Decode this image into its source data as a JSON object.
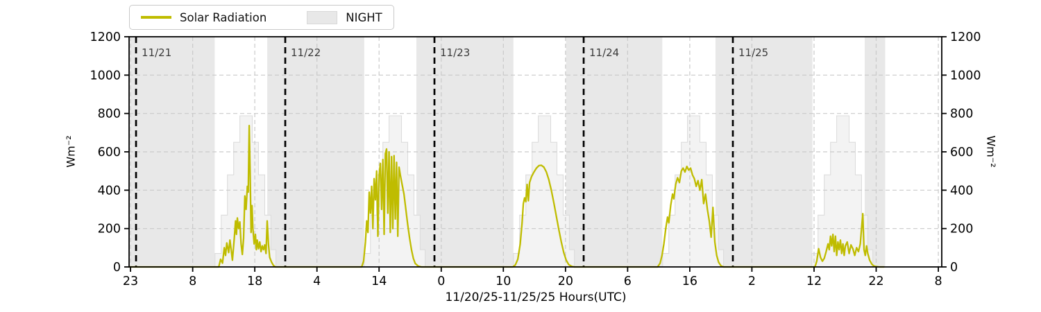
{
  "chart_data": {
    "type": "line",
    "xlabel": "11/20/25-11/25/25  Hours(UTC)",
    "ylabel": "Wm⁻²",
    "ylim": [
      0,
      1200
    ],
    "yticks": [
      0,
      200,
      400,
      600,
      800,
      1000,
      1200
    ],
    "x_range_hours": [
      -1.12,
      129.6
    ],
    "xticks": [
      {
        "hour": -0.89,
        "label": "23"
      },
      {
        "hour": 9.11,
        "label": "8"
      },
      {
        "hour": 19.1,
        "label": "18"
      },
      {
        "hour": 29.1,
        "label": "4"
      },
      {
        "hour": 39.09,
        "label": "14"
      },
      {
        "hour": 49.09,
        "label": "0"
      },
      {
        "hour": 59.08,
        "label": "10"
      },
      {
        "hour": 69.08,
        "label": "20"
      },
      {
        "hour": 79.07,
        "label": "6"
      },
      {
        "hour": 89.07,
        "label": "16"
      },
      {
        "hour": 99.06,
        "label": "2"
      },
      {
        "hour": 109.06,
        "label": "12"
      },
      {
        "hour": 119.05,
        "label": "22"
      },
      {
        "hour": 129.05,
        "label": "8"
      }
    ],
    "grid": true,
    "legend_position": "top-left",
    "legend_line_label": "Solar Radiation",
    "legend_night_label": "NIGHT",
    "day_markers": [
      {
        "hour": 0,
        "label": "11/21"
      },
      {
        "hour": 24,
        "label": "11/22"
      },
      {
        "hour": 48,
        "label": "11/23"
      },
      {
        "hour": 72,
        "label": "11/24"
      },
      {
        "hour": 96,
        "label": "11/25"
      }
    ],
    "night_bands_hours": [
      [
        -1.12,
        12.65
      ],
      [
        21.1,
        36.7
      ],
      [
        45.1,
        60.7
      ],
      [
        69.15,
        84.65
      ],
      [
        93.2,
        108.8
      ],
      [
        117.2,
        120.5
      ]
    ],
    "clear_sky_steps": {
      "day_offsets_hours": [
        0,
        24,
        48,
        72,
        96
      ],
      "step_boundaries_rel_midnight": [
        12.7,
        13.7,
        14.7,
        15.7,
        16.7,
        18.7,
        19.7,
        20.7,
        21.7,
        22.5
      ],
      "step_values": [
        70,
        270,
        480,
        650,
        788,
        650,
        480,
        270,
        90
      ]
    },
    "series": [
      {
        "name": "Solar Radiation",
        "units": "Wm-2",
        "points_hour_value": [
          [
            -1.12,
            0
          ],
          [
            13.3,
            0
          ],
          [
            13.6,
            40
          ],
          [
            13.9,
            20
          ],
          [
            14.2,
            100
          ],
          [
            14.4,
            60
          ],
          [
            14.6,
            125
          ],
          [
            14.9,
            75
          ],
          [
            15.1,
            140
          ],
          [
            15.3,
            90
          ],
          [
            15.5,
            35
          ],
          [
            15.8,
            150
          ],
          [
            16.0,
            240
          ],
          [
            16.15,
            170
          ],
          [
            16.3,
            255
          ],
          [
            16.5,
            200
          ],
          [
            16.7,
            235
          ],
          [
            16.9,
            120
          ],
          [
            17.1,
            65
          ],
          [
            17.3,
            150
          ],
          [
            17.5,
            370
          ],
          [
            17.7,
            300
          ],
          [
            17.9,
            420
          ],
          [
            18.05,
            390
          ],
          [
            18.2,
            737
          ],
          [
            18.35,
            500
          ],
          [
            18.5,
            180
          ],
          [
            18.65,
            320
          ],
          [
            18.8,
            200
          ],
          [
            19.0,
            120
          ],
          [
            19.2,
            170
          ],
          [
            19.35,
            90
          ],
          [
            19.5,
            140
          ],
          [
            19.7,
            95
          ],
          [
            19.9,
            130
          ],
          [
            20.1,
            80
          ],
          [
            20.3,
            110
          ],
          [
            20.5,
            90
          ],
          [
            20.7,
            115
          ],
          [
            20.9,
            70
          ],
          [
            21.1,
            240
          ],
          [
            21.3,
            120
          ],
          [
            21.5,
            50
          ],
          [
            21.8,
            25
          ],
          [
            22.1,
            8
          ],
          [
            22.4,
            0
          ],
          [
            36.3,
            0
          ],
          [
            36.6,
            30
          ],
          [
            36.9,
            130
          ],
          [
            37.1,
            240
          ],
          [
            37.3,
            180
          ],
          [
            37.5,
            390
          ],
          [
            37.7,
            280
          ],
          [
            37.9,
            420
          ],
          [
            38.1,
            200
          ],
          [
            38.3,
            460
          ],
          [
            38.5,
            350
          ],
          [
            38.7,
            500
          ],
          [
            38.9,
            160
          ],
          [
            39.1,
            480
          ],
          [
            39.3,
            540
          ],
          [
            39.5,
            300
          ],
          [
            39.7,
            560
          ],
          [
            39.9,
            170
          ],
          [
            40.1,
            590
          ],
          [
            40.3,
            615
          ],
          [
            40.5,
            280
          ],
          [
            40.7,
            600
          ],
          [
            40.9,
            180
          ],
          [
            41.1,
            575
          ],
          [
            41.3,
            200
          ],
          [
            41.5,
            580
          ],
          [
            41.7,
            250
          ],
          [
            41.9,
            545
          ],
          [
            42.1,
            160
          ],
          [
            42.3,
            520
          ],
          [
            42.5,
            480
          ],
          [
            42.8,
            430
          ],
          [
            43.1,
            380
          ],
          [
            43.4,
            300
          ],
          [
            43.7,
            220
          ],
          [
            44.0,
            150
          ],
          [
            44.3,
            90
          ],
          [
            44.6,
            45
          ],
          [
            44.9,
            18
          ],
          [
            45.4,
            4
          ],
          [
            45.9,
            0
          ],
          [
            60.6,
            0
          ],
          [
            61.0,
            10
          ],
          [
            61.4,
            40
          ],
          [
            61.8,
            120
          ],
          [
            62.1,
            230
          ],
          [
            62.3,
            330
          ],
          [
            62.5,
            360
          ],
          [
            62.7,
            340
          ],
          [
            62.9,
            430
          ],
          [
            63.1,
            345
          ],
          [
            63.3,
            440
          ],
          [
            63.6,
            470
          ],
          [
            64.0,
            495
          ],
          [
            64.4,
            515
          ],
          [
            64.8,
            528
          ],
          [
            65.2,
            530
          ],
          [
            65.6,
            520
          ],
          [
            66.0,
            495
          ],
          [
            66.4,
            455
          ],
          [
            66.8,
            400
          ],
          [
            67.2,
            335
          ],
          [
            67.6,
            265
          ],
          [
            68.0,
            195
          ],
          [
            68.4,
            130
          ],
          [
            68.8,
            75
          ],
          [
            69.2,
            35
          ],
          [
            69.6,
            12
          ],
          [
            70.1,
            3
          ],
          [
            70.5,
            0
          ],
          [
            83.9,
            0
          ],
          [
            84.3,
            20
          ],
          [
            84.6,
            60
          ],
          [
            84.9,
            120
          ],
          [
            85.2,
            200
          ],
          [
            85.5,
            260
          ],
          [
            85.7,
            230
          ],
          [
            86.0,
            320
          ],
          [
            86.3,
            380
          ],
          [
            86.5,
            355
          ],
          [
            86.8,
            430
          ],
          [
            87.1,
            465
          ],
          [
            87.4,
            440
          ],
          [
            87.7,
            500
          ],
          [
            88.0,
            515
          ],
          [
            88.3,
            495
          ],
          [
            88.6,
            524
          ],
          [
            88.9,
            505
          ],
          [
            89.2,
            515
          ],
          [
            89.5,
            480
          ],
          [
            89.8,
            460
          ],
          [
            90.1,
            420
          ],
          [
            90.4,
            450
          ],
          [
            90.7,
            400
          ],
          [
            91.0,
            455
          ],
          [
            91.3,
            330
          ],
          [
            91.6,
            380
          ],
          [
            91.9,
            300
          ],
          [
            92.2,
            240
          ],
          [
            92.5,
            155
          ],
          [
            92.8,
            310
          ],
          [
            93.1,
            130
          ],
          [
            93.4,
            60
          ],
          [
            93.7,
            25
          ],
          [
            94.1,
            5
          ],
          [
            94.5,
            0
          ],
          [
            109.2,
            0
          ],
          [
            109.5,
            30
          ],
          [
            109.8,
            95
          ],
          [
            110.1,
            50
          ],
          [
            110.4,
            30
          ],
          [
            110.7,
            45
          ],
          [
            111.0,
            80
          ],
          [
            111.3,
            120
          ],
          [
            111.5,
            90
          ],
          [
            111.7,
            160
          ],
          [
            111.9,
            110
          ],
          [
            112.1,
            170
          ],
          [
            112.3,
            80
          ],
          [
            112.5,
            160
          ],
          [
            112.7,
            60
          ],
          [
            112.9,
            130
          ],
          [
            113.1,
            90
          ],
          [
            113.3,
            140
          ],
          [
            113.5,
            70
          ],
          [
            113.7,
            120
          ],
          [
            113.9,
            60
          ],
          [
            114.1,
            110
          ],
          [
            114.4,
            130
          ],
          [
            114.7,
            70
          ],
          [
            115.0,
            115
          ],
          [
            115.3,
            95
          ],
          [
            115.6,
            60
          ],
          [
            115.9,
            100
          ],
          [
            116.2,
            80
          ],
          [
            116.5,
            120
          ],
          [
            116.9,
            278
          ],
          [
            117.1,
            90
          ],
          [
            117.3,
            60
          ],
          [
            117.5,
            110
          ],
          [
            117.7,
            70
          ],
          [
            118.0,
            35
          ],
          [
            118.4,
            12
          ],
          [
            118.8,
            3
          ],
          [
            119.5,
            0
          ],
          [
            120.3,
            0
          ]
        ]
      }
    ],
    "colors": {
      "solar_line": "#bfbc00",
      "night_band": "#e8e8e8",
      "night_patch_border": "#d8d8d8",
      "clear_sky_fill": "#f3f3f3",
      "clear_sky_edge": "#dcdcdc",
      "grid": "#c9c9c9",
      "day_marker_line": "#000000",
      "day_label": "#3a3a3a",
      "axis": "#000000"
    }
  }
}
